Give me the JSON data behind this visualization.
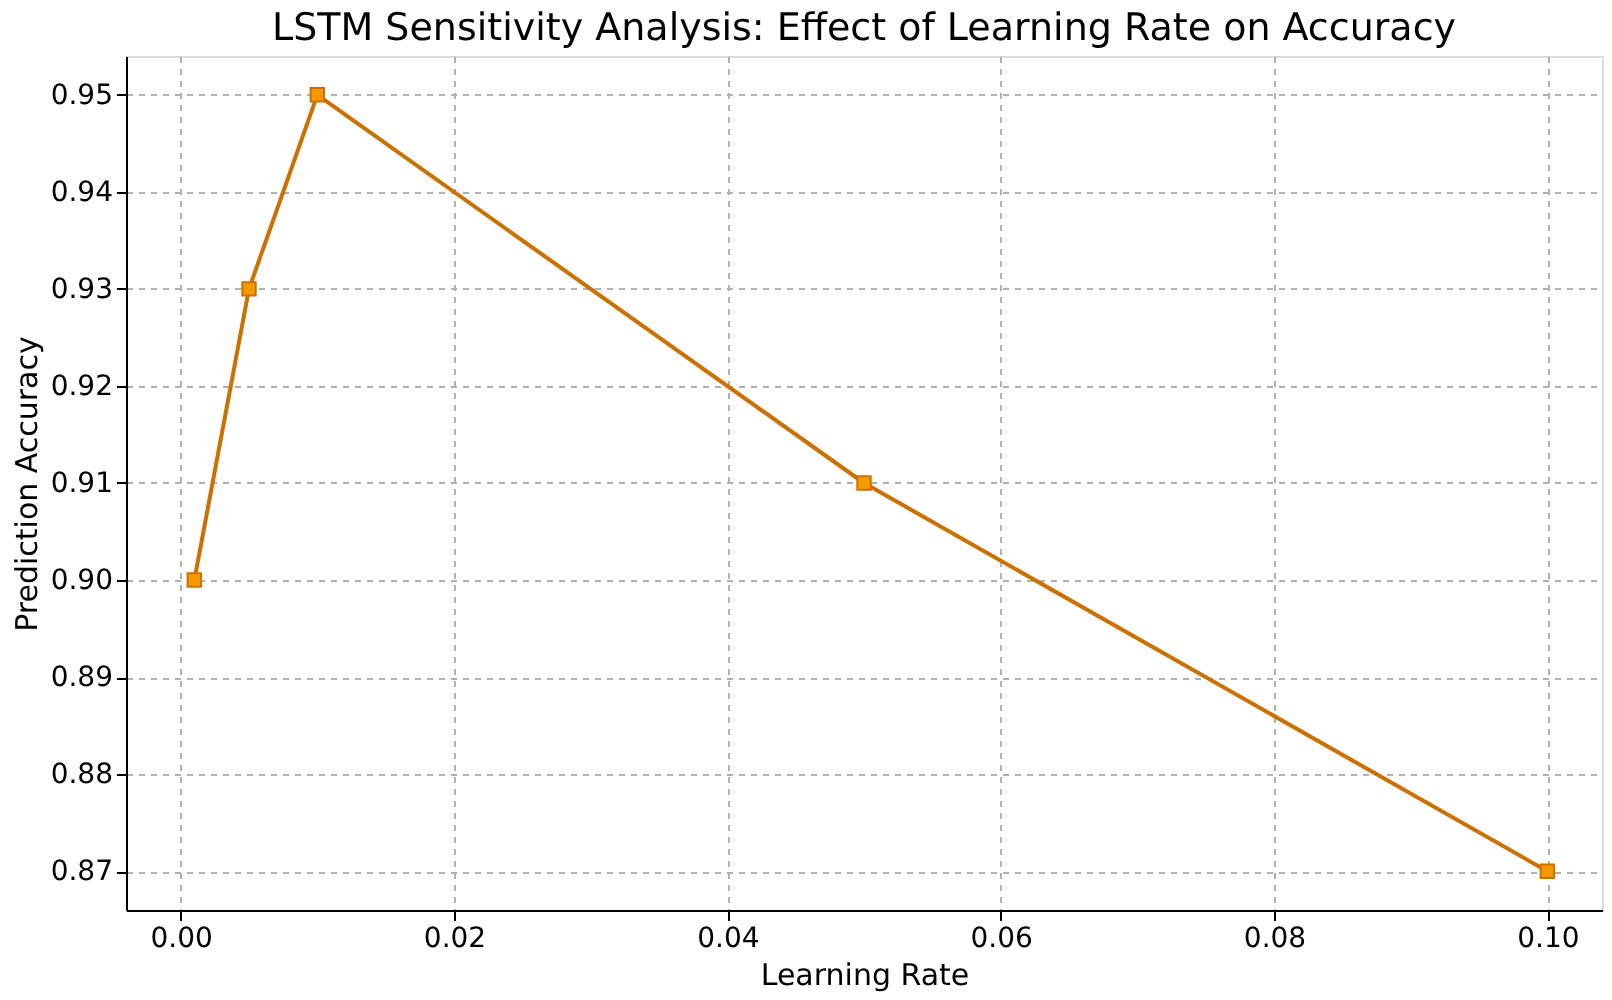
{
  "chart_data": {
    "type": "line",
    "title": "LSTM Sensitivity Analysis: Effect of Learning Rate on Accuracy",
    "xlabel": "Learning Rate",
    "ylabel": "Prediction Accuracy",
    "x": [
      0.001,
      0.005,
      0.01,
      0.05,
      0.1
    ],
    "series": [
      {
        "color": "#cc7000",
        "values": [
          0.9,
          0.93,
          0.95,
          0.91,
          0.87
        ]
      }
    ],
    "xlim": [
      -0.004,
      0.104
    ],
    "xticks": [
      {
        "value": 0,
        "label": "0.00"
      },
      {
        "value": 0.02,
        "label": "0.02"
      },
      {
        "value": 0.04,
        "label": "0.04"
      },
      {
        "value": 0.06,
        "label": "0.06"
      },
      {
        "value": 0.08,
        "label": "0.08"
      },
      {
        "value": 0.1,
        "label": "0.10"
      }
    ],
    "ylim": [
      0.866,
      0.954
    ],
    "yticks": [
      {
        "value": 0.87,
        "label": "0.87"
      },
      {
        "value": 0.88,
        "label": "0.88"
      },
      {
        "value": 0.89,
        "label": "0.89"
      },
      {
        "value": 0.9,
        "label": "0.90"
      },
      {
        "value": 0.91,
        "label": "0.91"
      },
      {
        "value": 0.92,
        "label": "0.92"
      },
      {
        "value": 0.93,
        "label": "0.93"
      },
      {
        "value": 0.94,
        "label": "0.94"
      },
      {
        "value": 0.95,
        "label": "0.95"
      }
    ],
    "grid": true,
    "marker": "square",
    "line_style": "solid"
  }
}
